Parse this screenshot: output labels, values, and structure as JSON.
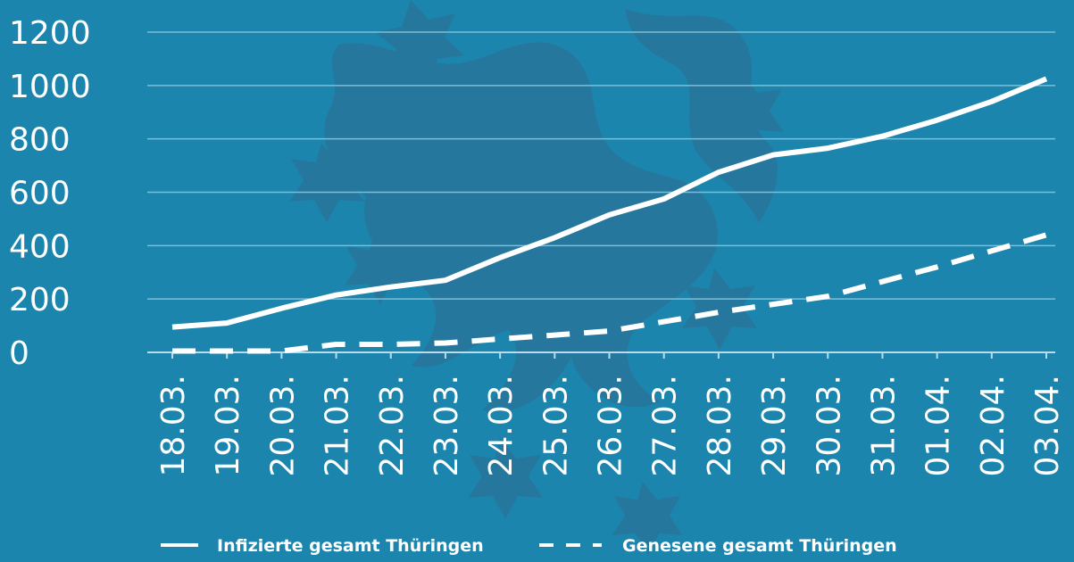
{
  "colors": {
    "background": "#1c85ad",
    "watermark": "#2a7398",
    "line": "#ffffff",
    "grid": "#7fbdd5",
    "axis": "#b9dcea"
  },
  "chart_data": {
    "type": "line",
    "title": "",
    "xlabel": "",
    "ylabel": "",
    "ylim": [
      0,
      1200
    ],
    "yticks": [
      "0",
      "200",
      "400",
      "600",
      "800",
      "1000",
      "1200"
    ],
    "grid": true,
    "legend_position": "bottom",
    "categories": [
      "18.03.",
      "19.03.",
      "20.03.",
      "21.03.",
      "22.03.",
      "23.03.",
      "24.03.",
      "25.03.",
      "26.03.",
      "27.03.",
      "28.03.",
      "29.03.",
      "30.03.",
      "31.03.",
      "01.04.",
      "02.04.",
      "03.04."
    ],
    "series": [
      {
        "name": "Infizierte gesamt Thüringen",
        "style": "solid",
        "values": [
          95,
          110,
          165,
          215,
          245,
          270,
          355,
          430,
          515,
          575,
          675,
          740,
          765,
          810,
          870,
          940,
          1025
        ]
      },
      {
        "name": "Genesene gesamt Thüringen",
        "style": "dashed",
        "values": [
          5,
          5,
          5,
          30,
          30,
          35,
          50,
          65,
          80,
          115,
          150,
          180,
          210,
          265,
          320,
          380,
          440
        ]
      }
    ]
  }
}
